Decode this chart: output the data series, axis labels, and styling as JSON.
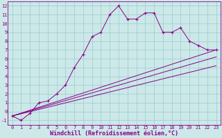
{
  "xlabel": "Windchill (Refroidissement éolien,°C)",
  "background_color": "#cce8e8",
  "line_color": "#880088",
  "x_ticks": [
    0,
    1,
    2,
    3,
    4,
    5,
    6,
    7,
    8,
    9,
    10,
    11,
    12,
    13,
    14,
    15,
    16,
    17,
    18,
    19,
    20,
    21,
    22,
    23
  ],
  "y_ticks": [
    -1,
    0,
    1,
    2,
    3,
    4,
    5,
    6,
    7,
    8,
    9,
    10,
    11,
    12
  ],
  "xlim": [
    -0.5,
    23.5
  ],
  "ylim": [
    -1.5,
    12.5
  ],
  "series1_x": [
    0,
    1,
    2,
    3,
    4,
    5,
    6,
    7,
    8,
    9,
    10,
    11,
    12,
    13,
    14,
    15,
    16,
    17,
    18,
    19,
    20,
    21,
    22,
    23
  ],
  "series1_y": [
    -0.5,
    -1.0,
    -0.2,
    1.0,
    1.2,
    2.0,
    3.0,
    5.0,
    6.5,
    8.5,
    9.0,
    11.0,
    12.0,
    10.5,
    10.5,
    11.2,
    11.2,
    9.0,
    9.0,
    9.5,
    8.0,
    7.5,
    7.0,
    7.0
  ],
  "series2_x": [
    0,
    23
  ],
  "series2_y": [
    -0.5,
    7.0
  ],
  "series3_x": [
    0,
    23
  ],
  "series3_y": [
    -0.5,
    6.2
  ],
  "series4_x": [
    0,
    23
  ],
  "series4_y": [
    -0.5,
    5.2
  ],
  "grid_color": "#99cccc",
  "tick_fontsize": 5,
  "xlabel_fontsize": 6
}
